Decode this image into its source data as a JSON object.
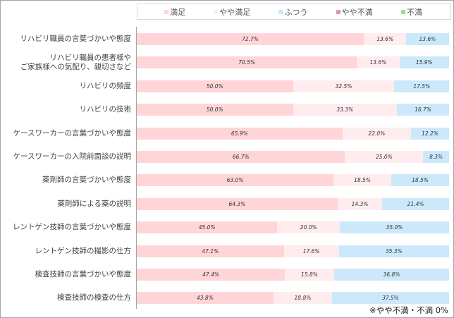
{
  "legend": [
    {
      "label": "満足",
      "color": "#ffd5d8"
    },
    {
      "label": "やや満足",
      "color": "#ffecee"
    },
    {
      "label": "ふつう",
      "color": "#cce9fb"
    },
    {
      "label": "やや不満",
      "color": "#e890b4"
    },
    {
      "label": "不満",
      "color": "#a8d88a"
    }
  ],
  "note": "※やや不満・不満 0%",
  "chart_data": {
    "type": "bar",
    "orientation": "horizontal",
    "stacked": true,
    "normalized": true,
    "title": "",
    "xlabel": "",
    "ylabel": "",
    "xlim": [
      0,
      100
    ],
    "grid": false,
    "legend_position": "top",
    "categories": [
      "リハビリ職員の言葉づかいや態度",
      "リハビリ職員の患者様や\nご家族様への気配り、親切さなど",
      "リハビリの頻度",
      "リハビリの技術",
      "ケースワーカーの言葉づかいや態度",
      "ケースワーカーの入院前面談の説明",
      "薬剤師の言葉づかいや態度",
      "薬剤師による薬の説明",
      "レントゲン技師の言葉づかいや態度",
      "レントゲン技師の撮影の仕方",
      "検査技師の言葉づかいや態度",
      "検査技師の検査の仕方"
    ],
    "series": [
      {
        "name": "満足",
        "color": "#ffd5d8",
        "values": [
          72.7,
          70.5,
          50.0,
          50.0,
          65.9,
          66.7,
          63.0,
          64.3,
          45.0,
          47.1,
          47.4,
          43.8
        ]
      },
      {
        "name": "やや満足",
        "color": "#ffecee",
        "values": [
          13.6,
          13.6,
          32.5,
          33.3,
          22.0,
          25.0,
          18.5,
          14.3,
          20.0,
          17.6,
          15.8,
          18.8
        ]
      },
      {
        "name": "ふつう",
        "color": "#cce9fb",
        "values": [
          13.6,
          15.9,
          17.5,
          16.7,
          12.2,
          8.3,
          18.5,
          21.4,
          35.0,
          35.3,
          36.8,
          37.5
        ]
      },
      {
        "name": "やや不満",
        "color": "#e890b4",
        "values": [
          0,
          0,
          0,
          0,
          0,
          0,
          0,
          0,
          0,
          0,
          0,
          0
        ]
      },
      {
        "name": "不満",
        "color": "#a8d88a",
        "values": [
          0,
          0,
          0,
          0,
          0,
          0,
          0,
          0,
          0,
          0,
          0,
          0
        ]
      }
    ],
    "data_labels": [
      [
        "72.7%",
        "13.6%",
        "13.6%"
      ],
      [
        "70.5%",
        "13.6%",
        "15.9%"
      ],
      [
        "50.0%",
        "32.5%",
        "17.5%"
      ],
      [
        "50.0%",
        "33.3%",
        "16.7%"
      ],
      [
        "65.9%",
        "22.0%",
        "12.2%"
      ],
      [
        "66.7%",
        "25.0%",
        "8.3%"
      ],
      [
        "63.0%",
        "18.5%",
        "18.5%"
      ],
      [
        "64.3%",
        "14.3%",
        "21.4%"
      ],
      [
        "45.0%",
        "20.0%",
        "35.0%"
      ],
      [
        "47.1%",
        "17.6%",
        "35.3%"
      ],
      [
        "47.4%",
        "15.8%",
        "36.8%"
      ],
      [
        "43.8%",
        "18.8%",
        "37.5%"
      ]
    ],
    "annotations": [
      "※やや不満・不満 0%"
    ]
  }
}
